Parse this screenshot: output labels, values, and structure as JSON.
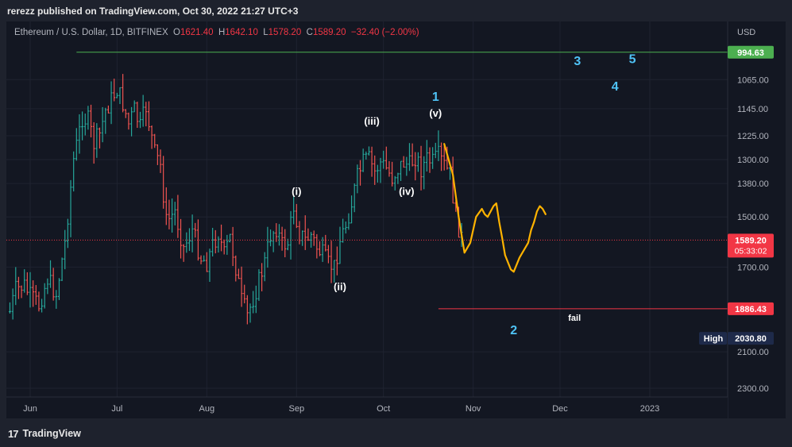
{
  "header": {
    "publisher_text": "rerezz published on TradingView.com, Oct 30, 2022 21:27 UTC+3"
  },
  "legend": {
    "symbol": "Ethereum / U.S. Dollar, 1D, BITFINEX",
    "o_label": "O",
    "o_value": "1621.40",
    "h_label": "H",
    "h_value": "1642.10",
    "l_label": "L",
    "l_value": "1578.20",
    "c_label": "C",
    "c_value": "1589.20",
    "change": "−32.40 (−2.00%)"
  },
  "footer": {
    "logo_glyph": "17",
    "brand": "TradingView"
  },
  "colors": {
    "bg": "#131722",
    "up": "#26a69a",
    "down": "#ef5350",
    "green_line": "#4caf50",
    "red_line": "#f23645",
    "wave_blue": "#4fc3f7",
    "yellow": "#ffb300",
    "grid": "#1f2330"
  },
  "chart_data": {
    "type": "ohlc",
    "title": "Ethereum / U.S. Dollar, 1D, BITFINEX",
    "y_scale": "log",
    "y_inverted": true,
    "y_axis_title": "USD",
    "ylim": [
      994.63,
      2300
    ],
    "y_ticks": [
      "1065.00",
      "1145.00",
      "1225.00",
      "1300.00",
      "1380.00",
      "1500.00",
      "1700.00",
      "2100.00",
      "2300.00"
    ],
    "x_ticks": [
      "Jun",
      "Jul",
      "Aug",
      "Sep",
      "Oct",
      "Nov",
      "Dec",
      "2023"
    ],
    "x_day_range": [
      -3,
      222
    ],
    "x_tick_days": [
      0,
      30,
      61,
      92,
      122,
      153,
      183,
      214
    ],
    "bar_keypoints": [
      [
        -7,
        1900
      ],
      [
        -5,
        1800
      ],
      [
        -2,
        1780
      ],
      [
        0,
        1830
      ],
      [
        3,
        1870
      ],
      [
        6,
        1750
      ],
      [
        9,
        1820
      ],
      [
        12,
        1600
      ],
      [
        15,
        1300
      ],
      [
        18,
        1170
      ],
      [
        20,
        1180
      ],
      [
        22,
        1250
      ],
      [
        24,
        1220
      ],
      [
        26,
        1150
      ],
      [
        28,
        1120
      ],
      [
        30,
        1090
      ],
      [
        32,
        1130
      ],
      [
        34,
        1190
      ],
      [
        36,
        1150
      ],
      [
        38,
        1200
      ],
      [
        40,
        1140
      ],
      [
        43,
        1280
      ],
      [
        45,
        1320
      ],
      [
        47,
        1520
      ],
      [
        50,
        1480
      ],
      [
        53,
        1620
      ],
      [
        56,
        1550
      ],
      [
        59,
        1660
      ],
      [
        61,
        1680
      ],
      [
        63,
        1610
      ],
      [
        65,
        1560
      ],
      [
        67,
        1650
      ],
      [
        69,
        1580
      ],
      [
        71,
        1700
      ],
      [
        73,
        1850
      ],
      [
        75,
        1920
      ],
      [
        77,
        1840
      ],
      [
        79,
        1760
      ],
      [
        81,
        1680
      ],
      [
        83,
        1570
      ],
      [
        85,
        1540
      ],
      [
        87,
        1610
      ],
      [
        89,
        1600
      ],
      [
        91,
        1460
      ],
      [
        93,
        1560
      ],
      [
        95,
        1590
      ],
      [
        97,
        1570
      ],
      [
        99,
        1620
      ],
      [
        101,
        1650
      ],
      [
        103,
        1690
      ],
      [
        105,
        1700
      ],
      [
        107,
        1590
      ],
      [
        109,
        1530
      ],
      [
        111,
        1450
      ],
      [
        113,
        1360
      ],
      [
        115,
        1310
      ],
      [
        117,
        1300
      ],
      [
        119,
        1340
      ],
      [
        121,
        1310
      ],
      [
        123,
        1330
      ],
      [
        125,
        1360
      ],
      [
        127,
        1330
      ],
      [
        129,
        1310
      ],
      [
        131,
        1320
      ],
      [
        133,
        1290
      ],
      [
        135,
        1330
      ],
      [
        137,
        1300
      ],
      [
        139,
        1310
      ],
      [
        141,
        1290
      ],
      [
        143,
        1320
      ],
      [
        145,
        1350
      ],
      [
        147,
        1500
      ],
      [
        149,
        1580
      ]
    ],
    "horizontal_lines": [
      {
        "label": "994.63",
        "value": 994.63,
        "color": "#4caf50",
        "from_day": 16
      },
      {
        "label": "1886.43",
        "value": 1886.43,
        "color": "#f23645",
        "from_day": 141
      }
    ],
    "current_price": {
      "label": "1589.20",
      "countdown": "05:33:02",
      "value": 1589.2
    },
    "high_marker": {
      "label": "High",
      "value_label": "2030.80",
      "value": 2030.8
    },
    "wave_labels": [
      {
        "text": "(i)",
        "day": 92,
        "price": 1420,
        "color": "#ffffff"
      },
      {
        "text": "(ii)",
        "day": 107,
        "price": 1800,
        "color": "#ffffff"
      },
      {
        "text": "(iii)",
        "day": 118,
        "price": 1192,
        "color": "#ffffff"
      },
      {
        "text": "(iv)",
        "day": 130,
        "price": 1420,
        "color": "#ffffff"
      },
      {
        "text": "(v)",
        "day": 140,
        "price": 1168,
        "color": "#ffffff"
      },
      {
        "text": "1",
        "day": 140,
        "price": 1123,
        "color": "#4fc3f7"
      },
      {
        "text": "2",
        "day": 167,
        "price": 2010,
        "color": "#4fc3f7"
      },
      {
        "text": "3",
        "day": 189,
        "price": 1027,
        "color": "#4fc3f7"
      },
      {
        "text": "4",
        "day": 202,
        "price": 1094,
        "color": "#4fc3f7"
      },
      {
        "text": "5",
        "day": 208,
        "price": 1022,
        "color": "#4fc3f7"
      },
      {
        "text": "fail",
        "day": 188,
        "price": 1944,
        "color": "#ffffff"
      }
    ],
    "projection_path": [
      [
        143,
        1250
      ],
      [
        146,
        1350
      ],
      [
        148,
        1500
      ],
      [
        150,
        1640
      ],
      [
        152,
        1600
      ],
      [
        154,
        1500
      ],
      [
        156,
        1470
      ],
      [
        157,
        1490
      ],
      [
        158,
        1500
      ],
      [
        160,
        1460
      ],
      [
        161,
        1450
      ],
      [
        162,
        1520
      ],
      [
        163,
        1580
      ],
      [
        164,
        1650
      ],
      [
        166,
        1710
      ],
      [
        167,
        1720
      ],
      [
        169,
        1660
      ],
      [
        172,
        1600
      ],
      [
        173,
        1550
      ],
      [
        174,
        1520
      ],
      [
        175,
        1480
      ],
      [
        176,
        1460
      ],
      [
        177,
        1470
      ],
      [
        178,
        1490
      ]
    ]
  }
}
